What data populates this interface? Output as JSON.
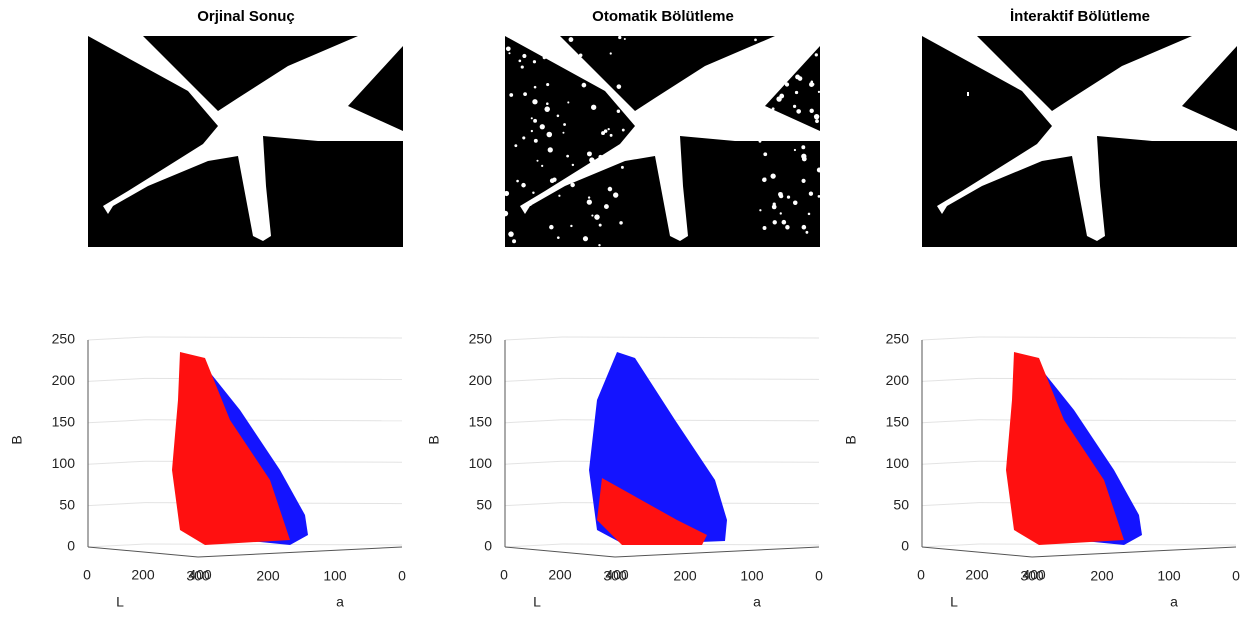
{
  "panels": [
    {
      "title": "Orjinal Sonuç",
      "z_label": "B",
      "x_label": "L",
      "y_label": "a",
      "z_ticks": [
        0,
        50,
        100,
        150,
        200,
        250
      ],
      "l_ticks": [
        0,
        200,
        400
      ],
      "a_ticks": [
        300,
        200,
        100,
        0
      ]
    },
    {
      "title": "Otomatik Bölütleme",
      "z_label": "B",
      "x_label": "L",
      "y_label": "a",
      "z_ticks": [
        0,
        50,
        100,
        150,
        200,
        250
      ],
      "l_ticks": [
        0,
        200,
        400
      ],
      "a_ticks": [
        300,
        200,
        100,
        0
      ]
    },
    {
      "title": "İnteraktif Bölütleme",
      "z_label": "B",
      "x_label": "L",
      "y_label": "a",
      "z_ticks": [
        0,
        50,
        100,
        150,
        200,
        250
      ],
      "l_ticks": [
        0,
        200,
        400
      ],
      "a_ticks": [
        300,
        200,
        100,
        0
      ]
    }
  ]
}
